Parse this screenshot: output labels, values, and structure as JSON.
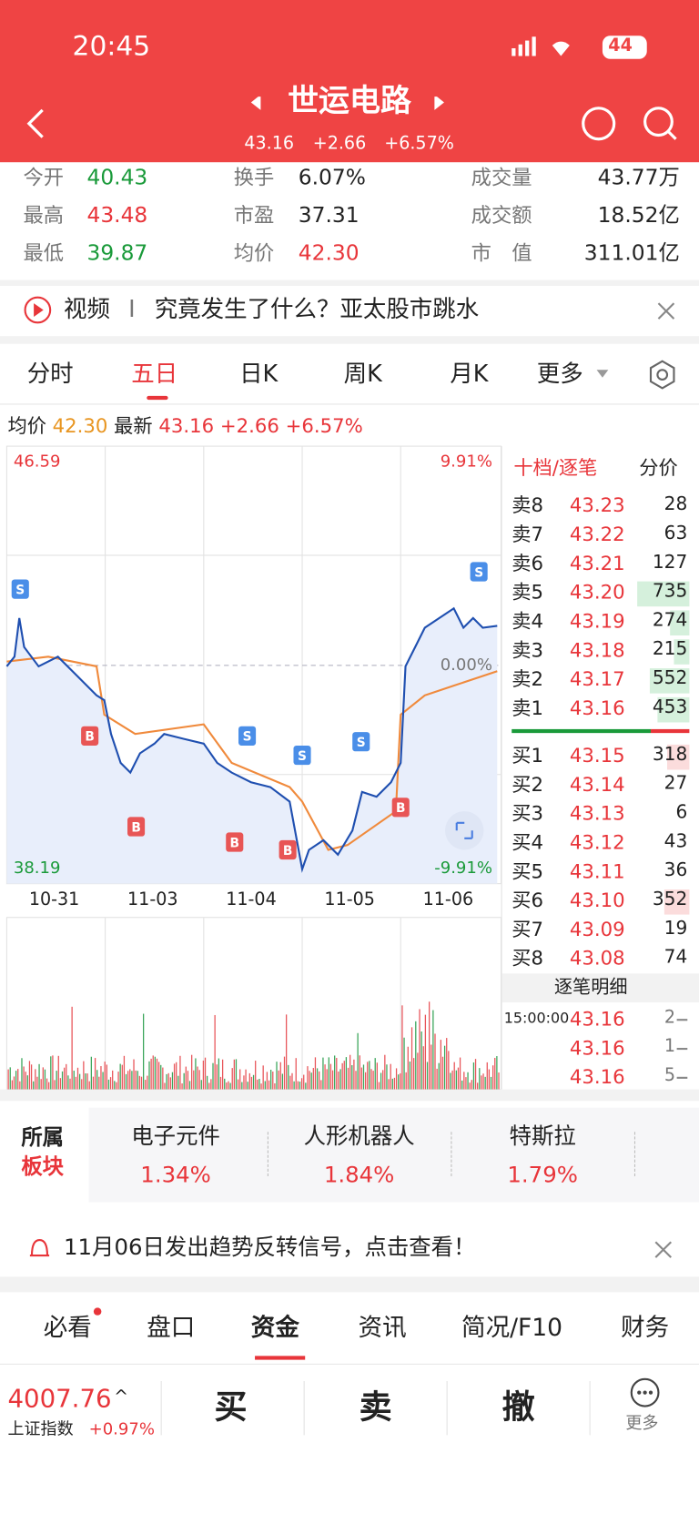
{
  "status": {
    "time": "20:45",
    "battery": "44"
  },
  "header": {
    "title": "世运电路",
    "price": "43.16",
    "change": "+2.66",
    "pct": "+6.57%"
  },
  "stats": [
    [
      {
        "label": "今开",
        "value": "40.43"
      },
      {
        "label": "换手",
        "value": "6.07%"
      },
      {
        "label": "成交量",
        "value": "43.77万"
      }
    ],
    [
      {
        "label": "最高",
        "value": "43.48"
      },
      {
        "label": "市盈",
        "value": "37.31"
      },
      {
        "label": "成交额",
        "value": "18.52亿"
      }
    ],
    [
      {
        "label": "最低",
        "value": "39.87"
      },
      {
        "label": "均价",
        "value": "42.30"
      },
      {
        "label": "市　值",
        "value": "311.01亿"
      }
    ]
  ],
  "news": {
    "tag": "视频",
    "text": "究竟发生了什么？亚太股市跳水"
  },
  "tabs": [
    "分时",
    "五日",
    "日K",
    "周K",
    "月K",
    "更多"
  ],
  "info": {
    "avg_label": "均价",
    "avg": "42.30",
    "last_label": "最新",
    "last": "43.16",
    "change": "+2.66",
    "pct": "+6.57%"
  },
  "chart": {
    "high": "46.59",
    "low": "38.19",
    "high_pct": "9.91%",
    "low_pct": "-9.91%",
    "mid_pct": "0.00%",
    "dates": [
      "10-31",
      "11-03",
      "11-04",
      "11-05",
      "11-06"
    ]
  },
  "orderbook": {
    "tab": "十档/逐笔",
    "tab2": "分价",
    "asks": [
      {
        "label": "卖8",
        "price": "43.23",
        "vol": 28
      },
      {
        "label": "卖7",
        "price": "43.22",
        "vol": 63
      },
      {
        "label": "卖6",
        "price": "43.21",
        "vol": 127
      },
      {
        "label": "卖5",
        "price": "43.20",
        "vol": 735
      },
      {
        "label": "卖4",
        "price": "43.19",
        "vol": 274
      },
      {
        "label": "卖3",
        "price": "43.18",
        "vol": 215
      },
      {
        "label": "卖2",
        "price": "43.17",
        "vol": 552
      },
      {
        "label": "卖1",
        "price": "43.16",
        "vol": 453
      }
    ],
    "bids": [
      {
        "label": "买1",
        "price": "43.15",
        "vol": 318
      },
      {
        "label": "买2",
        "price": "43.14",
        "vol": 27
      },
      {
        "label": "买3",
        "price": "43.13",
        "vol": 6
      },
      {
        "label": "买4",
        "price": "43.12",
        "vol": 43
      },
      {
        "label": "买5",
        "price": "43.11",
        "vol": 36
      },
      {
        "label": "买6",
        "price": "43.10",
        "vol": 352
      },
      {
        "label": "买7",
        "price": "43.09",
        "vol": 19
      },
      {
        "label": "买8",
        "price": "43.08",
        "vol": 74
      }
    ],
    "detail": "逐笔明细",
    "trades": [
      {
        "time": "15:00:00",
        "price": "43.16",
        "vol": 2
      },
      {
        "price": "43.16",
        "vol": 1
      },
      {
        "price": "43.16",
        "vol": 5
      }
    ]
  },
  "sectors": {
    "label1": "所属",
    "label2": "板块",
    "items": [
      {
        "name": "电子元件",
        "pct": "1.34%"
      },
      {
        "name": "人形机器人",
        "pct": "1.84%"
      },
      {
        "name": "特斯拉",
        "pct": "1.79%"
      }
    ]
  },
  "signal": "11月06日发出趋势反转信号，点击查看！",
  "bottom_tabs": [
    "必看",
    "盘口",
    "资金",
    "资讯",
    "简况/F10",
    "财务"
  ],
  "footer": {
    "index": "4007.76",
    "index_name": "上证指数",
    "index_change": "+0.97%",
    "buy": "买",
    "sell": "卖",
    "cancel": "撤",
    "more": "更多"
  }
}
